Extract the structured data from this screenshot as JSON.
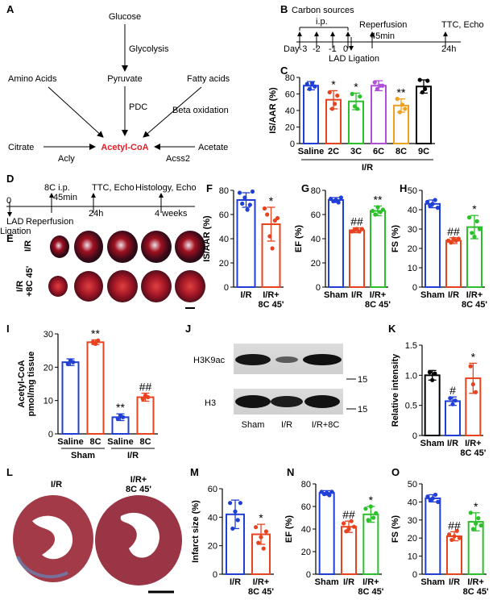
{
  "panel_letters": [
    "A",
    "B",
    "C",
    "D",
    "E",
    "F",
    "G",
    "H",
    "I",
    "J",
    "K",
    "L",
    "M",
    "N",
    "O"
  ],
  "colors": {
    "blue": "#1f3fd6",
    "red": "#e8431f",
    "green": "#2cc02c",
    "purple": "#b04fd8",
    "orange": "#f0a020",
    "black": "#000000",
    "pathway_red": "#e0202a"
  },
  "panelA": {
    "glucose": "Glucose",
    "glycolysis": "Glycolysis",
    "pyruvate": "Pyruvate",
    "pdc": "PDC",
    "amino_acids": "Amino Acids",
    "fatty_acids": "Fatty acids",
    "beta_oxidation": "Beta oxidation",
    "citrate": "Citrate",
    "acly": "Acly",
    "acetyl_coa": "Acetyl-CoA",
    "acetate": "Acetate",
    "acss2": "Acss2"
  },
  "panelB": {
    "title": "Carbon sources",
    "ip": "i.p.",
    "reperfusion": "Reperfusion",
    "ttc_echo": "TTC, Echo",
    "ticks": [
      "Day-3",
      "-2",
      "-1",
      "0"
    ],
    "min45": "45min",
    "h24": "24h",
    "lad": "LAD Ligation"
  },
  "panelD": {
    "ip": "8C i.p.",
    "min45": "45min",
    "ttc": "TTC, Echo",
    "histology": "Histology, Echo",
    "zero": "0",
    "lad": "LAD",
    "ligation": "Ligation",
    "reperfusion": "Reperfusion",
    "h24": "24h",
    "weeks4": "4 weeks"
  },
  "panelE": {
    "row1": "I/R",
    "row2a": "I/R",
    "row2b": "+8C 45'"
  },
  "panelJ": {
    "h3k9ac": "H3K9ac",
    "h3": "H3",
    "kda1": "15",
    "kda2": "15",
    "lanes": [
      "Sham",
      "I/R",
      "I/R+8C"
    ]
  },
  "panelL": {
    "label1": "I/R",
    "label2a": "I/R+",
    "label2b": "8C 45'"
  },
  "chart_data": [
    {
      "id": "C",
      "type": "bar",
      "ylabel": "IS/AAR (%)",
      "ylim": [
        0,
        80
      ],
      "yticks": [
        0,
        20,
        40,
        60,
        80
      ],
      "categories": [
        "Saline",
        "2C",
        "3C",
        "6C",
        "8C",
        "9C"
      ],
      "group_label": "I/R",
      "values": [
        70,
        53,
        51,
        70,
        46,
        69
      ],
      "errors": [
        5,
        11,
        10,
        6,
        8,
        8
      ],
      "colors": [
        "blue",
        "red",
        "green",
        "purple",
        "orange",
        "black"
      ],
      "annotations": [
        "",
        "*",
        "*",
        "",
        "**",
        ""
      ],
      "points": [
        [
          72,
          66,
          73,
          69
        ],
        [
          62,
          42,
          48,
          58
        ],
        [
          60,
          45,
          42,
          57
        ],
        [
          74,
          66,
          70,
          70
        ],
        [
          54,
          38,
          47,
          42
        ],
        [
          77,
          62,
          66,
          76
        ]
      ]
    },
    {
      "id": "F",
      "type": "bar",
      "ylabel": "IS/AAR (%)",
      "ylim": [
        0,
        80
      ],
      "yticks": [
        0,
        20,
        40,
        60,
        80
      ],
      "categories": [
        "I/R",
        "I/R+\n8C 45'"
      ],
      "values": [
        72,
        52
      ],
      "errors": [
        6,
        14
      ],
      "colors": [
        "blue",
        "red"
      ],
      "annotations": [
        "",
        "*"
      ],
      "points": [
        [
          78,
          69,
          74,
          64,
          68,
          79
        ],
        [
          65,
          60,
          42,
          32,
          55,
          57
        ]
      ]
    },
    {
      "id": "G",
      "type": "bar",
      "ylabel": "EF (%)",
      "ylim": [
        0,
        80
      ],
      "yticks": [
        0,
        20,
        40,
        60,
        80
      ],
      "categories": [
        "Sham",
        "I/R",
        "I/R+\n8C 45'"
      ],
      "values": [
        72,
        47,
        63
      ],
      "errors": [
        2,
        2,
        4
      ],
      "colors": [
        "blue",
        "red",
        "green"
      ],
      "annotations": [
        "",
        "##",
        "**"
      ],
      "points": [
        [
          73,
          71,
          72,
          70,
          74
        ],
        [
          46,
          47,
          48,
          46,
          48
        ],
        [
          63,
          60,
          66,
          62,
          64
        ]
      ]
    },
    {
      "id": "H",
      "type": "bar",
      "ylabel": "FS (%)",
      "ylim": [
        0,
        50
      ],
      "yticks": [
        0,
        10,
        20,
        30,
        40,
        50
      ],
      "categories": [
        "Sham",
        "I/R",
        "I/R+\n8C 45'"
      ],
      "values": [
        43,
        24,
        31
      ],
      "errors": [
        2,
        1.5,
        6
      ],
      "colors": [
        "blue",
        "red",
        "green"
      ],
      "annotations": [
        "",
        "##",
        "*"
      ],
      "points": [
        [
          44,
          42,
          43,
          45,
          41
        ],
        [
          24,
          23,
          25,
          24,
          25
        ],
        [
          36,
          28,
          26,
          34,
          30
        ]
      ]
    },
    {
      "id": "I",
      "type": "bar",
      "ylabel": "Acetyl-CoA\npmol/mg tissue",
      "ylim": [
        0,
        30
      ],
      "yticks": [
        0,
        10,
        20,
        30
      ],
      "categories": [
        "Saline",
        "8C",
        "Saline",
        "8C"
      ],
      "group_labels": [
        "Sham",
        "I/R"
      ],
      "values": [
        21.5,
        27.5,
        5,
        11
      ],
      "errors": [
        1,
        0.7,
        1,
        1.2
      ],
      "colors": [
        "blue",
        "red",
        "blue",
        "red"
      ],
      "annotations": [
        "",
        "**",
        "**",
        "##"
      ],
      "points": [
        [
          21,
          22,
          21.5
        ],
        [
          27.5,
          27,
          28
        ],
        [
          4.5,
          5.5,
          5
        ],
        [
          10.5,
          11.5,
          11
        ]
      ]
    },
    {
      "id": "K",
      "type": "bar",
      "ylabel": "Relative intensity",
      "ylim": [
        0,
        1.5
      ],
      "yticks": [
        0,
        0.5,
        1.0,
        1.5
      ],
      "categories": [
        "Sham",
        "I/R",
        "I/R+\n8C 45'"
      ],
      "values": [
        1.0,
        0.57,
        0.95
      ],
      "errors": [
        0.08,
        0.07,
        0.25
      ],
      "colors": [
        "black",
        "blue",
        "red"
      ],
      "annotations": [
        "",
        "#",
        "*"
      ],
      "points": [
        [
          1.05,
          0.92,
          1.03
        ],
        [
          0.62,
          0.52,
          0.58
        ],
        [
          1.15,
          0.85,
          0.72
        ]
      ]
    },
    {
      "id": "M",
      "type": "bar",
      "ylabel": "Infarct size (%)",
      "ylim": [
        0,
        60
      ],
      "yticks": [
        0,
        20,
        40,
        60
      ],
      "categories": [
        "I/R",
        "I/R+\n8C 45'"
      ],
      "values": [
        42,
        28
      ],
      "errors": [
        10,
        7
      ],
      "colors": [
        "blue",
        "red"
      ],
      "annotations": [
        "",
        "*"
      ],
      "points": [
        [
          50,
          32,
          44,
          38,
          50
        ],
        [
          33,
          22,
          26,
          18,
          30
        ]
      ]
    },
    {
      "id": "N",
      "type": "bar",
      "ylabel": "EF (%)",
      "ylim": [
        0,
        80
      ],
      "yticks": [
        0,
        20,
        40,
        60,
        80
      ],
      "categories": [
        "Sham",
        "I/R",
        "I/R+\n8C 45'"
      ],
      "values": [
        72,
        42,
        53
      ],
      "errors": [
        2,
        5,
        7
      ],
      "colors": [
        "blue",
        "red",
        "green"
      ],
      "annotations": [
        "",
        "##",
        "*"
      ],
      "points": [
        [
          73,
          71,
          72,
          70,
          73
        ],
        [
          45,
          38,
          40,
          47,
          42
        ],
        [
          58,
          48,
          60,
          50,
          54
        ]
      ]
    },
    {
      "id": "O",
      "type": "bar",
      "ylabel": "FS (%)",
      "ylim": [
        0,
        50
      ],
      "yticks": [
        0,
        10,
        20,
        30,
        40,
        50
      ],
      "categories": [
        "Sham",
        "I/R",
        "I/R+\n8C 45'"
      ],
      "values": [
        42,
        21,
        29
      ],
      "errors": [
        2,
        2.5,
        5
      ],
      "colors": [
        "blue",
        "red",
        "green"
      ],
      "annotations": [
        "",
        "##",
        "*"
      ],
      "points": [
        [
          43,
          41,
          42,
          44,
          40
        ],
        [
          22,
          19,
          21,
          24,
          20
        ],
        [
          34,
          25,
          28,
          31,
          27
        ]
      ]
    }
  ]
}
